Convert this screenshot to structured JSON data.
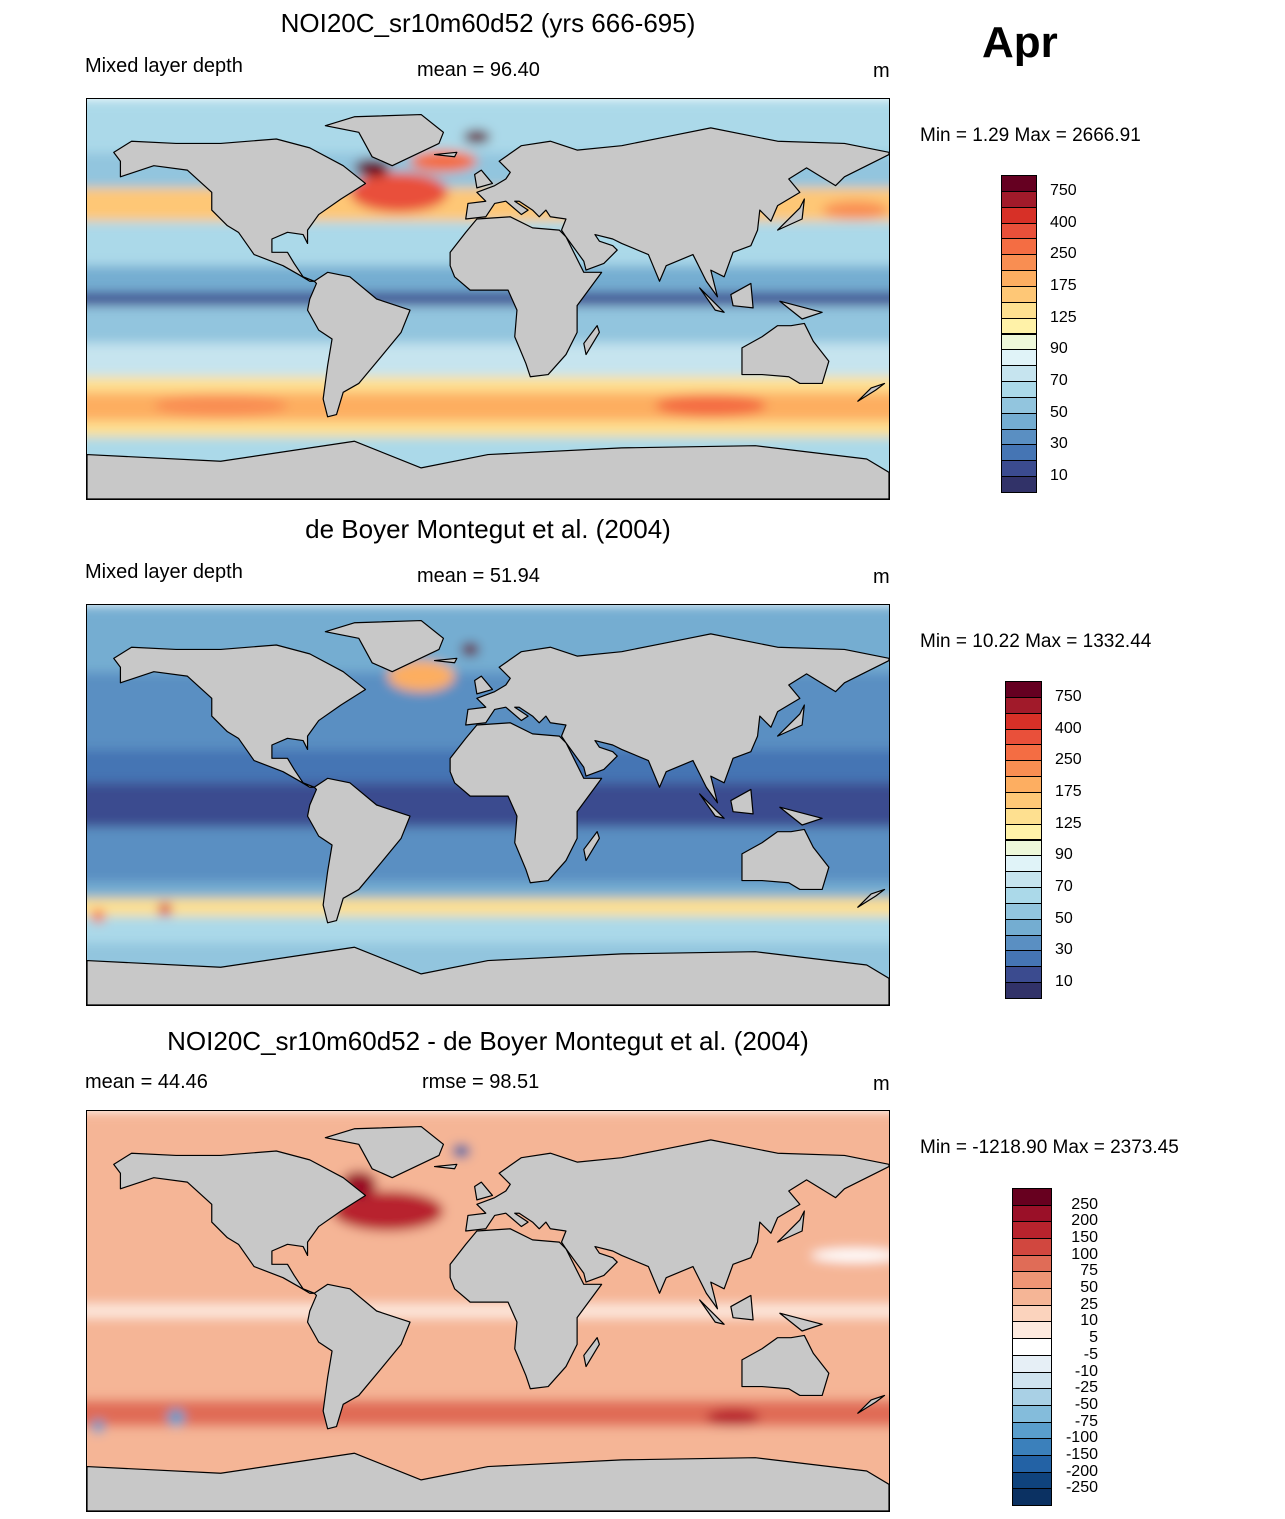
{
  "month": "Apr",
  "panels": [
    {
      "title": "NOI20C_sr10m60d52 (yrs 666-695)",
      "left": "Mixed layer depth",
      "center": "mean =  96.40",
      "units": "m",
      "minmax": "Min =    1.29 Max = 2666.91"
    },
    {
      "title": "de Boyer Montegut et al. (2004)",
      "left": "Mixed layer depth",
      "center": "mean =  51.94",
      "units": "m",
      "minmax": "Min =  10.22 Max = 1332.44"
    },
    {
      "title": "NOI20C_sr10m60d52 - de Boyer Montegut et al. (2004)",
      "left": "mean =  44.46",
      "center": "rmse =  98.51",
      "units": "m",
      "minmax": "Min = -1218.90 Max = 2373.45"
    }
  ],
  "colorbars": {
    "mld": {
      "colors": [
        "#650021",
        "#a11a2a",
        "#d73027",
        "#e9503a",
        "#f46d43",
        "#f98e52",
        "#fdae61",
        "#fec776",
        "#fee090",
        "#fff2a8",
        "#eef8da",
        "#e0f3f8",
        "#c6e4ef",
        "#abd9e9",
        "#92c5de",
        "#74add1",
        "#5a8fc2",
        "#4575b4",
        "#3b4b8f",
        "#313268"
      ],
      "labels": [
        "750",
        "400",
        "250",
        "175",
        "125",
        "90",
        "70",
        "50",
        "30",
        "10"
      ]
    },
    "diff": {
      "colors": [
        "#67001f",
        "#9a1028",
        "#b8232d",
        "#d1473f",
        "#e06c57",
        "#ee9575",
        "#f5b596",
        "#fbd3bd",
        "#fde9de",
        "#ffffff",
        "#e6eff6",
        "#cfe3ef",
        "#a9d0e5",
        "#84bcdb",
        "#5a9ecc",
        "#3b80bb",
        "#2362a5",
        "#0f437d",
        "#0b3162"
      ],
      "labels": [
        "250",
        "200",
        "150",
        "100",
        "75",
        "50",
        "25",
        "10",
        "5",
        "-5",
        "-10",
        "-25",
        "-50",
        "-75",
        "-100",
        "-150",
        "-200",
        "-250"
      ]
    }
  }
}
